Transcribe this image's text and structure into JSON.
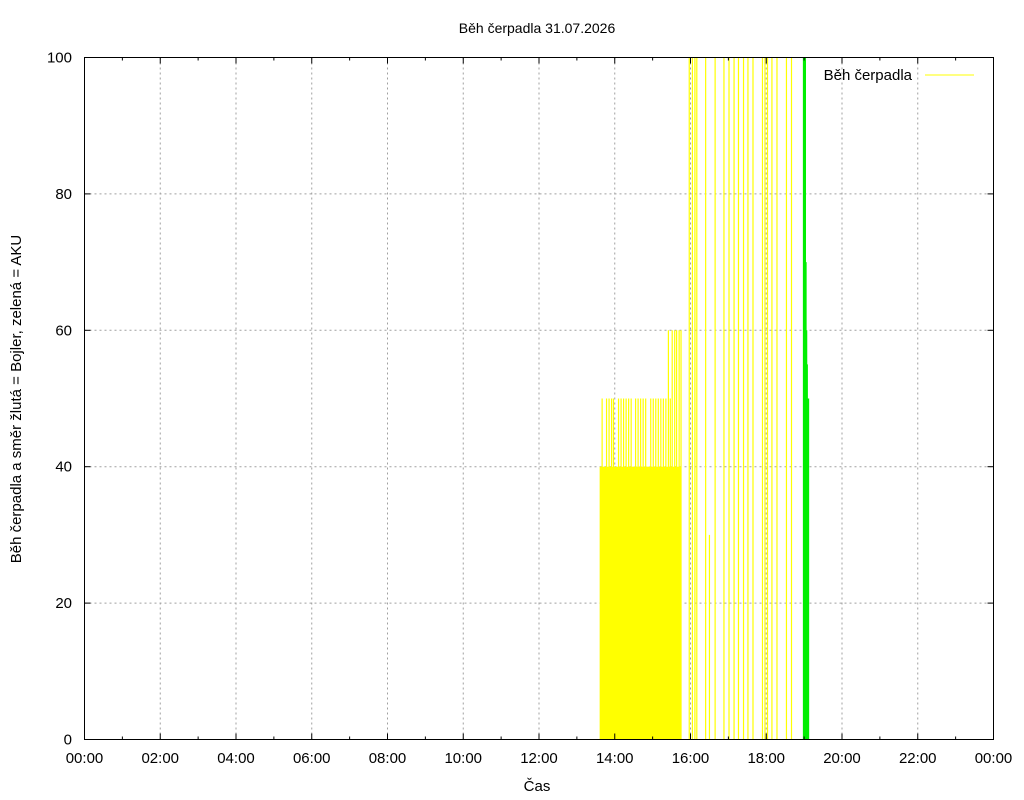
{
  "chart_data": {
    "type": "bar",
    "title": "Běh čerpadla 31.07.2026",
    "xlabel": "Čas",
    "ylabel": "Běh čerpadla a směr žlutá = Bojler, zelená = AKU",
    "xlim": [
      "00:00",
      "24:00"
    ],
    "ylim": [
      0,
      100
    ],
    "x_ticks": [
      "00:00",
      "02:00",
      "04:00",
      "06:00",
      "08:00",
      "10:00",
      "12:00",
      "14:00",
      "16:00",
      "18:00",
      "20:00",
      "22:00",
      "00:00"
    ],
    "y_ticks": [
      0,
      20,
      40,
      60,
      80,
      100
    ],
    "grid": true,
    "legend": {
      "position": "top-right",
      "entries": [
        "Běh čerpadla"
      ]
    },
    "colors": {
      "bojler": "#ffff00",
      "aku": "#00ee00",
      "grid": "#a0a0a0"
    },
    "series": [
      {
        "name": "Běh čerpadla",
        "color": "#ffff00",
        "fill_blocks": [
          {
            "start": "13:37",
            "end": "15:45",
            "value": 40
          }
        ],
        "spikes": [
          {
            "time": "13:37",
            "value": 40
          },
          {
            "time": "13:40",
            "value": 50
          },
          {
            "time": "13:44",
            "value": 40
          },
          {
            "time": "13:47",
            "value": 50
          },
          {
            "time": "13:51",
            "value": 50
          },
          {
            "time": "13:55",
            "value": 50
          },
          {
            "time": "13:58",
            "value": 50
          },
          {
            "time": "14:02",
            "value": 40
          },
          {
            "time": "14:06",
            "value": 50
          },
          {
            "time": "14:10",
            "value": 50
          },
          {
            "time": "14:14",
            "value": 50
          },
          {
            "time": "14:18",
            "value": 50
          },
          {
            "time": "14:22",
            "value": 50
          },
          {
            "time": "14:26",
            "value": 50
          },
          {
            "time": "14:29",
            "value": 40
          },
          {
            "time": "14:33",
            "value": 50
          },
          {
            "time": "14:37",
            "value": 50
          },
          {
            "time": "14:41",
            "value": 50
          },
          {
            "time": "14:45",
            "value": 50
          },
          {
            "time": "14:49",
            "value": 50
          },
          {
            "time": "14:53",
            "value": 40
          },
          {
            "time": "14:57",
            "value": 50
          },
          {
            "time": "15:01",
            "value": 50
          },
          {
            "time": "15:05",
            "value": 50
          },
          {
            "time": "15:09",
            "value": 50
          },
          {
            "time": "15:13",
            "value": 50
          },
          {
            "time": "15:17",
            "value": 50
          },
          {
            "time": "15:21",
            "value": 50
          },
          {
            "time": "15:25",
            "value": 60
          },
          {
            "time": "15:28",
            "value": 50
          },
          {
            "time": "15:31",
            "value": 60
          },
          {
            "time": "15:35",
            "value": 60
          },
          {
            "time": "15:38",
            "value": 60
          },
          {
            "time": "15:42",
            "value": 60
          },
          {
            "time": "15:45",
            "value": 60
          },
          {
            "time": "15:58",
            "value": 100
          },
          {
            "time": "16:03",
            "value": 100
          },
          {
            "time": "16:07",
            "value": 100
          },
          {
            "time": "16:10",
            "value": 100
          },
          {
            "time": "16:24",
            "value": 100
          },
          {
            "time": "16:30",
            "value": 30
          },
          {
            "time": "16:39",
            "value": 100
          },
          {
            "time": "16:53",
            "value": 100
          },
          {
            "time": "17:01",
            "value": 100
          },
          {
            "time": "17:09",
            "value": 100
          },
          {
            "time": "17:16",
            "value": 100
          },
          {
            "time": "17:24",
            "value": 100
          },
          {
            "time": "17:31",
            "value": 100
          },
          {
            "time": "17:39",
            "value": 100
          },
          {
            "time": "17:54",
            "value": 100
          },
          {
            "time": "17:58",
            "value": 100
          },
          {
            "time": "18:02",
            "value": 100
          },
          {
            "time": "18:09",
            "value": 100
          },
          {
            "time": "18:17",
            "value": 100
          },
          {
            "time": "18:32",
            "value": 100
          },
          {
            "time": "18:40",
            "value": 100
          }
        ]
      },
      {
        "name": "",
        "color": "#00ee00",
        "spikes": [
          {
            "time": "19:00",
            "value": 100
          },
          {
            "time": "19:01",
            "value": 100
          },
          {
            "time": "19:02",
            "value": 70
          },
          {
            "time": "19:03",
            "value": 60
          },
          {
            "time": "19:04",
            "value": 55
          },
          {
            "time": "19:05",
            "value": 50
          },
          {
            "time": "19:06",
            "value": 50
          }
        ]
      }
    ]
  }
}
